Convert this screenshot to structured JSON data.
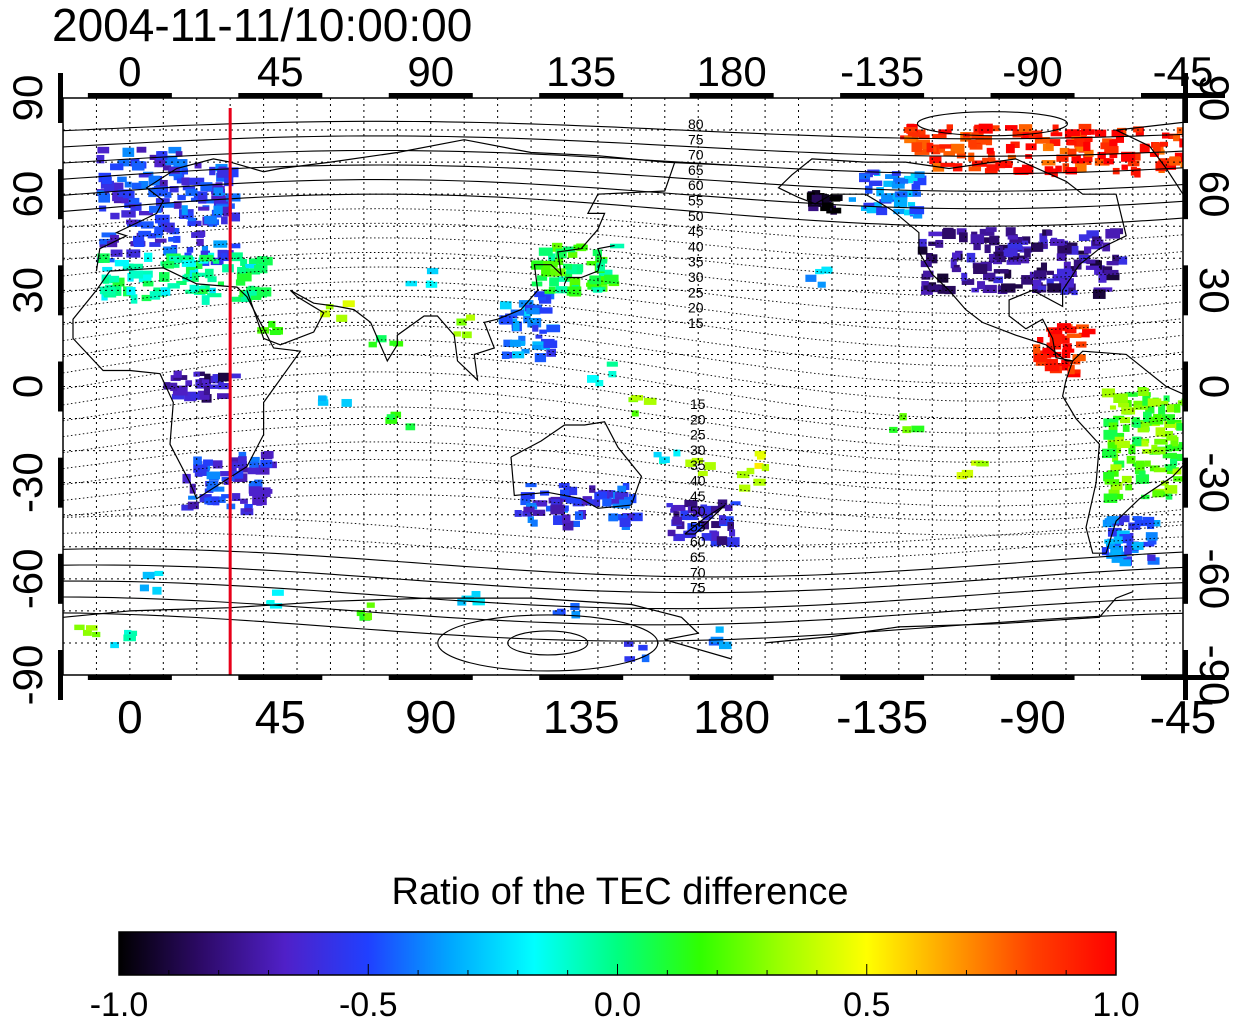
{
  "title": "2004-11-11/10:00:00",
  "map": {
    "x_ticks": [
      "0",
      "45",
      "90",
      "135",
      "180",
      "-135",
      "-90",
      "-45"
    ],
    "y_ticks": [
      "90",
      "60",
      "30",
      "0",
      "-30",
      "-60",
      "-90"
    ],
    "contour_labels_north": [
      "80",
      "75",
      "70",
      "65",
      "60",
      "55",
      "50",
      "45",
      "40",
      "35",
      "30",
      "25",
      "20",
      "15"
    ],
    "contour_labels_south": [
      "15",
      "20",
      "25",
      "30",
      "35",
      "40",
      "45",
      "50",
      "55",
      "60",
      "65",
      "70",
      "75"
    ],
    "marker_line": {
      "longitude": 30,
      "color": "#e8001a"
    }
  },
  "colorbar": {
    "title": "Ratio of the TEC difference",
    "ticks": [
      "-1.0",
      "-0.5",
      "0.0",
      "0.5",
      "1.0"
    ],
    "stops": [
      "#000000",
      "#2d0a68",
      "#5020c8",
      "#2040ff",
      "#00a8ff",
      "#00ffff",
      "#00ff80",
      "#30ff00",
      "#a0ff00",
      "#ffff00",
      "#ffa000",
      "#ff4000",
      "#ff0000"
    ]
  },
  "chart_data": {
    "type": "heatmap",
    "title": "2004-11-11/10:00:00",
    "x_axis": {
      "label": "",
      "ticks": [
        0,
        45,
        90,
        135,
        180,
        -135,
        -90,
        -45
      ],
      "range_deg": [
        -20,
        315
      ]
    },
    "y_axis": {
      "label": "",
      "ticks": [
        90,
        60,
        30,
        0,
        -30,
        -60,
        -90
      ],
      "range": [
        -90,
        90
      ]
    },
    "value_label": "Ratio of the TEC difference",
    "value_range": [
      -1.0,
      1.0
    ],
    "marker_longitude": 30,
    "regions": [
      {
        "lon": [
          -10,
          15
        ],
        "lat": [
          40,
          75
        ],
        "value": -0.55
      },
      {
        "lon": [
          15,
          30
        ],
        "lat": [
          40,
          70
        ],
        "value": -0.5
      },
      {
        "lon": [
          -10,
          40
        ],
        "lat": [
          28,
          42
        ],
        "value": -0.05
      },
      {
        "lon": [
          15,
          40
        ],
        "lat": [
          -38,
          -20
        ],
        "value": -0.55
      },
      {
        "lon": [
          10,
          30
        ],
        "lat": [
          -3,
          5
        ],
        "value": -0.75
      },
      {
        "lon": [
          120,
          145
        ],
        "lat": [
          30,
          45
        ],
        "value": 0.1
      },
      {
        "lon": [
          110,
          125
        ],
        "lat": [
          10,
          30
        ],
        "value": -0.4
      },
      {
        "lon": [
          115,
          150
        ],
        "lat": [
          -42,
          -30
        ],
        "value": -0.55
      },
      {
        "lon": [
          160,
          180
        ],
        "lat": [
          -47,
          -35
        ],
        "value": -0.65
      },
      {
        "lon": [
          200,
          210
        ],
        "lat": [
          55,
          62
        ],
        "value": -0.95
      },
      {
        "lon": [
          235,
          295
        ],
        "lat": [
          30,
          50
        ],
        "value": -0.75
      },
      {
        "lon": [
          215,
          235
        ],
        "lat": [
          55,
          68
        ],
        "value": -0.4
      },
      {
        "lon": [
          230,
          320
        ],
        "lat": [
          68,
          82
        ],
        "value": 0.9
      },
      {
        "lon": [
          270,
          285
        ],
        "lat": [
          5,
          20
        ],
        "value": 0.95
      },
      {
        "lon": [
          290,
          315
        ],
        "lat": [
          -35,
          0
        ],
        "value": 0.2
      },
      {
        "lon": [
          290,
          305
        ],
        "lat": [
          -55,
          -40
        ],
        "value": -0.45
      }
    ]
  }
}
